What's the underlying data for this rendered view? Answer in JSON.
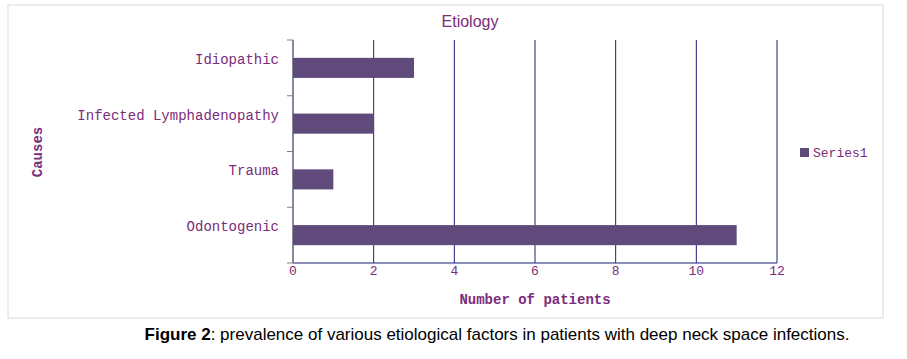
{
  "chart_data": {
    "type": "bar",
    "orientation": "horizontal",
    "title": "Etiology",
    "x_label": "Number of patients",
    "y_label": "Causes",
    "categories": [
      "Odontogenic",
      "Trauma",
      "Infected Lymphadenopathy",
      "Idiopathic"
    ],
    "series": [
      {
        "name": "Series1",
        "color": "#604a7b",
        "values": [
          11,
          1,
          2,
          3
        ]
      }
    ],
    "xlim": [
      0,
      12
    ],
    "xticks": [
      0,
      2,
      4,
      6,
      8,
      10,
      12
    ],
    "grid": true,
    "legend": "right",
    "caption_label": "Figure 2",
    "caption": ": prevalence of various etiological factors in patients with deep neck space infections."
  }
}
